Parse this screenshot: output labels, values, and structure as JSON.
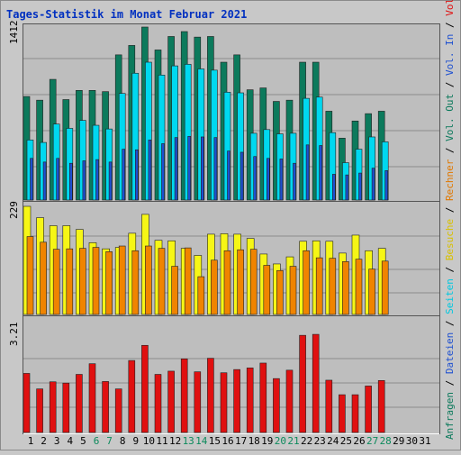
{
  "title": "Tages-Statistik im Monat Februar 2021",
  "colors": {
    "background": "#c8c8c8",
    "plot_bg": "#bebebe",
    "title": "#0030c0",
    "anfragen": "#0c7a5c",
    "dateien": "#1e50d0",
    "seiten": "#00d8f0",
    "besuche": "#f6f616",
    "rechner": "#f08400",
    "volumen": "#e01010",
    "weekend_label": "#0c8a5c",
    "weekday_label": "#000000"
  },
  "panels": {
    "top": {
      "max_label": "1412"
    },
    "mid": {
      "max_label": "229"
    },
    "bottom": {
      "max_label": "3.21"
    }
  },
  "right_legend": [
    {
      "text": "Anfragen",
      "color": "#0c7a5c"
    },
    {
      "text": " / ",
      "color": "#000000"
    },
    {
      "text": "Dateien",
      "color": "#1e50d0"
    },
    {
      "text": " / ",
      "color": "#000000"
    },
    {
      "text": "Seiten",
      "color": "#00c8e0"
    },
    {
      "text": " / ",
      "color": "#000000"
    },
    {
      "text": "Besuche",
      "color": "#d8c000"
    },
    {
      "text": " / ",
      "color": "#000000"
    },
    {
      "text": "Rechner",
      "color": "#e07800"
    },
    {
      "text": " / ",
      "color": "#000000"
    },
    {
      "text": "Vol. Out",
      "color": "#0c7a5c"
    },
    {
      "text": " / ",
      "color": "#000000"
    },
    {
      "text": "Vol. In",
      "color": "#1e50d0"
    },
    {
      "text": " / ",
      "color": "#000000"
    },
    {
      "text": "Volumen",
      "color": "#e01010"
    }
  ],
  "chart_data": {
    "type": "bar",
    "title": "Tages-Statistik im Monat Februar 2021",
    "categories": [
      "1",
      "2",
      "3",
      "4",
      "5",
      "6",
      "7",
      "8",
      "9",
      "10",
      "11",
      "12",
      "13",
      "14",
      "15",
      "16",
      "17",
      "18",
      "19",
      "20",
      "21",
      "22",
      "23",
      "24",
      "25",
      "26",
      "27",
      "28",
      "29",
      "30",
      "31"
    ],
    "weekend_days": [
      "6",
      "7",
      "13",
      "14",
      "20",
      "21",
      "27",
      "28"
    ],
    "series": [
      {
        "name": "Anfragen",
        "panel": "top",
        "ylim": [
          0,
          1412
        ],
        "values": [
          845,
          815,
          985,
          820,
          895,
          895,
          885,
          1185,
          1262,
          1412,
          1225,
          1335,
          1375,
          1330,
          1335,
          1125,
          1185,
          900,
          915,
          805,
          815,
          1125,
          1125,
          725,
          505,
          645,
          705,
          725,
          null,
          null,
          null
        ]
      },
      {
        "name": "Dateien",
        "panel": "top",
        "ylim": [
          0,
          1412
        ],
        "values": [
          340,
          310,
          340,
          300,
          320,
          330,
          310,
          415,
          410,
          490,
          460,
          510,
          520,
          515,
          510,
          400,
          390,
          355,
          340,
          335,
          300,
          450,
          445,
          210,
          205,
          220,
          260,
          240,
          null,
          null,
          null
        ]
      },
      {
        "name": "Seiten",
        "panel": "top",
        "ylim": [
          0,
          1412
        ],
        "values": [
          490,
          470,
          620,
          585,
          650,
          610,
          580,
          870,
          1035,
          1125,
          1020,
          1095,
          1108,
          1070,
          1060,
          880,
          875,
          545,
          575,
          540,
          545,
          830,
          840,
          550,
          305,
          415,
          515,
          475,
          null,
          null,
          null
        ]
      },
      {
        "name": "Besuche",
        "panel": "mid",
        "ylim": [
          0,
          229
        ],
        "values": [
          229,
          205,
          188,
          188,
          180,
          152,
          139,
          142,
          172,
          212,
          157,
          156,
          140,
          125,
          170,
          171,
          170,
          161,
          128,
          107,
          122,
          155,
          156,
          155,
          130,
          168,
          135,
          140,
          null,
          null,
          null
        ]
      },
      {
        "name": "Rechner",
        "panel": "mid",
        "ylim": [
          0,
          229
        ],
        "values": [
          165,
          153,
          138,
          139,
          140,
          142,
          133,
          145,
          135,
          145,
          140,
          102,
          141,
          80,
          115,
          135,
          137,
          138,
          104,
          93,
          102,
          135,
          120,
          119,
          112,
          117,
          96,
          113,
          null,
          null,
          null
        ]
      },
      {
        "name": "Volumen",
        "panel": "bottom",
        "ylim": [
          0,
          3.21
        ],
        "values": [
          1.83,
          1.35,
          1.57,
          1.53,
          1.8,
          2.13,
          1.58,
          1.35,
          2.23,
          2.7,
          1.8,
          1.9,
          2.28,
          1.88,
          2.3,
          1.85,
          1.95,
          2.0,
          2.15,
          1.67,
          1.93,
          3.01,
          3.04,
          1.62,
          1.17,
          1.17,
          1.44,
          1.61,
          null,
          null,
          null
        ]
      }
    ]
  }
}
